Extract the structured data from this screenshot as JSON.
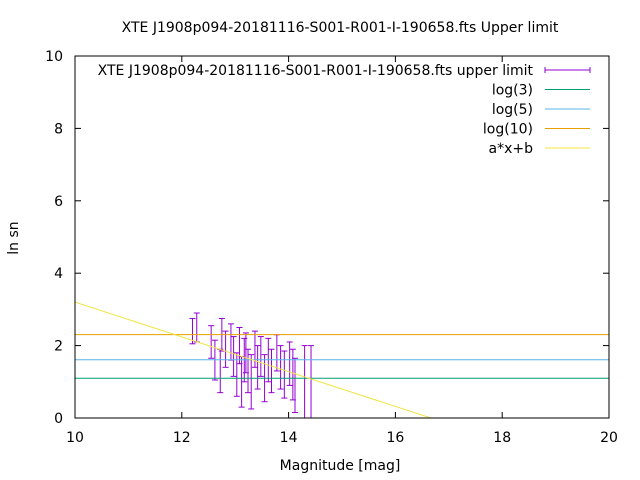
{
  "chart_data": {
    "type": "scatter",
    "title": "XTE J1908p094-20181116-S001-R001-I-190658.fts Upper limit",
    "xlabel": "Magnitude [mag]",
    "ylabel": "ln sn",
    "xlim": [
      10,
      20
    ],
    "ylim": [
      0,
      10
    ],
    "xticks": [
      "10",
      "12",
      "14",
      "16",
      "18",
      "20"
    ],
    "yticks": [
      "0",
      "2",
      "4",
      "6",
      "8",
      "10"
    ],
    "grid": false,
    "legend_position": "top-right",
    "series": [
      {
        "name": "XTE J1908p094-20181116-S001-R001-I-190658.fts upper limit",
        "kind": "errorbars",
        "color": "#9400d3",
        "points": [
          {
            "x": 12.2,
            "y": 2.4,
            "err": 0.35
          },
          {
            "x": 12.28,
            "y": 2.5,
            "err": 0.4
          },
          {
            "x": 12.55,
            "y": 2.1,
            "err": 0.45
          },
          {
            "x": 12.62,
            "y": 1.6,
            "err": 0.55
          },
          {
            "x": 12.72,
            "y": 1.3,
            "err": 0.6
          },
          {
            "x": 12.75,
            "y": 2.3,
            "err": 0.45
          },
          {
            "x": 12.82,
            "y": 1.9,
            "err": 0.5
          },
          {
            "x": 12.92,
            "y": 2.1,
            "err": 0.5
          },
          {
            "x": 12.97,
            "y": 1.7,
            "err": 0.55
          },
          {
            "x": 13.03,
            "y": 1.2,
            "err": 0.6
          },
          {
            "x": 13.08,
            "y": 2.0,
            "err": 0.5
          },
          {
            "x": 13.12,
            "y": 1.0,
            "err": 0.7
          },
          {
            "x": 13.17,
            "y": 1.6,
            "err": 0.6
          },
          {
            "x": 13.2,
            "y": 1.8,
            "err": 0.55
          },
          {
            "x": 13.24,
            "y": 1.3,
            "err": 0.6
          },
          {
            "x": 13.3,
            "y": 1.0,
            "err": 0.75
          },
          {
            "x": 13.37,
            "y": 1.9,
            "err": 0.5
          },
          {
            "x": 13.42,
            "y": 1.4,
            "err": 0.6
          },
          {
            "x": 13.48,
            "y": 1.7,
            "err": 0.55
          },
          {
            "x": 13.55,
            "y": 1.1,
            "err": 0.65
          },
          {
            "x": 13.62,
            "y": 1.6,
            "err": 0.6
          },
          {
            "x": 13.68,
            "y": 1.3,
            "err": 0.6
          },
          {
            "x": 13.78,
            "y": 1.8,
            "err": 0.5
          },
          {
            "x": 13.85,
            "y": 1.4,
            "err": 0.6
          },
          {
            "x": 13.92,
            "y": 1.2,
            "err": 0.65
          },
          {
            "x": 14.02,
            "y": 1.5,
            "err": 0.6
          },
          {
            "x": 14.08,
            "y": 1.2,
            "err": 0.7
          },
          {
            "x": 14.12,
            "y": 0.9,
            "err": 0.75
          },
          {
            "x": 14.3,
            "y": 1.0,
            "err": 1.0
          },
          {
            "x": 14.42,
            "y": 0.9,
            "err": 1.1
          }
        ]
      },
      {
        "name": "log(3)",
        "kind": "hline",
        "y": 1.0986,
        "color": "#009e73"
      },
      {
        "name": "log(5)",
        "kind": "hline",
        "y": 1.6094,
        "color": "#56b4e9"
      },
      {
        "name": "log(10)",
        "kind": "hline",
        "y": 2.3026,
        "color": "#e69f00"
      },
      {
        "name": "a*x+b",
        "kind": "line",
        "a": -0.48,
        "b": 8.0,
        "color": "#f0e442"
      }
    ]
  }
}
